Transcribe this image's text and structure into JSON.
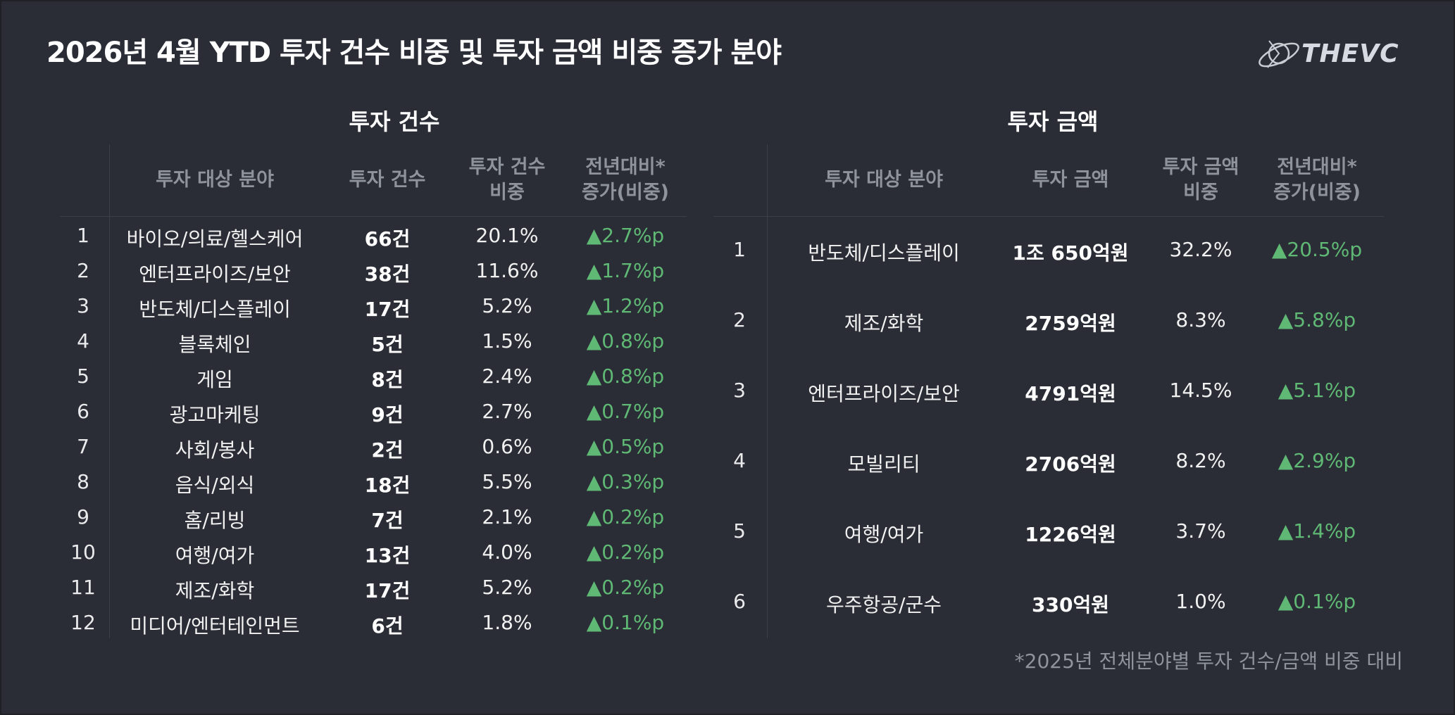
{
  "title": "2026년 4월 YTD 투자 건수 비중 및 투자 금액 비중 증가 분야",
  "logo_text": "THEVC",
  "count_table": {
    "section_title": "투자 건수",
    "headers": [
      "투자 대상 분야",
      "투자 건수",
      "투자 건수\n비중",
      "전년대비*\n증가(비중)"
    ],
    "rows": [
      {
        "rank": "1",
        "field": "바이오/의료/헬스케어",
        "count": "66건",
        "share": "20.1%",
        "increase": "▲2.7%p"
      },
      {
        "rank": "2",
        "field": "엔터프라이즈/보안",
        "count": "38건",
        "share": "11.6%",
        "increase": "▲1.7%p"
      },
      {
        "rank": "3",
        "field": "반도체/디스플레이",
        "count": "17건",
        "share": "5.2%",
        "increase": "▲1.2%p"
      },
      {
        "rank": "4",
        "field": "블록체인",
        "count": "5건",
        "share": "1.5%",
        "increase": "▲0.8%p"
      },
      {
        "rank": "5",
        "field": "게임",
        "count": "8건",
        "share": "2.4%",
        "increase": "▲0.8%p"
      },
      {
        "rank": "6",
        "field": "광고마케팅",
        "count": "9건",
        "share": "2.7%",
        "increase": "▲0.7%p"
      },
      {
        "rank": "7",
        "field": "사회/봉사",
        "count": "2건",
        "share": "0.6%",
        "increase": "▲0.5%p"
      },
      {
        "rank": "8",
        "field": "음식/외식",
        "count": "18건",
        "share": "5.5%",
        "increase": "▲0.3%p"
      },
      {
        "rank": "9",
        "field": "홈/리빙",
        "count": "7건",
        "share": "2.1%",
        "increase": "▲0.2%p"
      },
      {
        "rank": "10",
        "field": "여행/여가",
        "count": "13건",
        "share": "4.0%",
        "increase": "▲0.2%p"
      },
      {
        "rank": "11",
        "field": "제조/화학",
        "count": "17건",
        "share": "5.2%",
        "increase": "▲0.2%p"
      },
      {
        "rank": "12",
        "field": "미디어/엔터테인먼트",
        "count": "6건",
        "share": "1.8%",
        "increase": "▲0.1%p"
      }
    ]
  },
  "amount_table": {
    "section_title": "투자 금액",
    "headers": [
      "투자 대상 분야",
      "투자 금액",
      "투자 금액\n비중",
      "전년대비*\n증가(비중)"
    ],
    "rows": [
      {
        "rank": "1",
        "field": "반도체/디스플레이",
        "amount": "1조 650억원",
        "share": "32.2%",
        "increase": "▲20.5%p"
      },
      {
        "rank": "2",
        "field": "제조/화학",
        "amount": "2759억원",
        "share": "8.3%",
        "increase": "▲5.8%p"
      },
      {
        "rank": "3",
        "field": "엔터프라이즈/보안",
        "amount": "4791억원",
        "share": "14.5%",
        "increase": "▲5.1%p"
      },
      {
        "rank": "4",
        "field": "모빌리티",
        "amount": "2706억원",
        "share": "8.2%",
        "increase": "▲2.9%p"
      },
      {
        "rank": "5",
        "field": "여행/여가",
        "amount": "1226억원",
        "share": "3.7%",
        "increase": "▲1.4%p"
      },
      {
        "rank": "6",
        "field": "우주항공/군수",
        "amount": "330억원",
        "share": "1.0%",
        "increase": "▲0.1%p"
      }
    ]
  },
  "footnote": "*2025년 전체분야별 투자 건수/금액 비중 대비",
  "colors": {
    "background": "#2a2d35",
    "increase": "#5fb975",
    "header": "#8f939b"
  }
}
